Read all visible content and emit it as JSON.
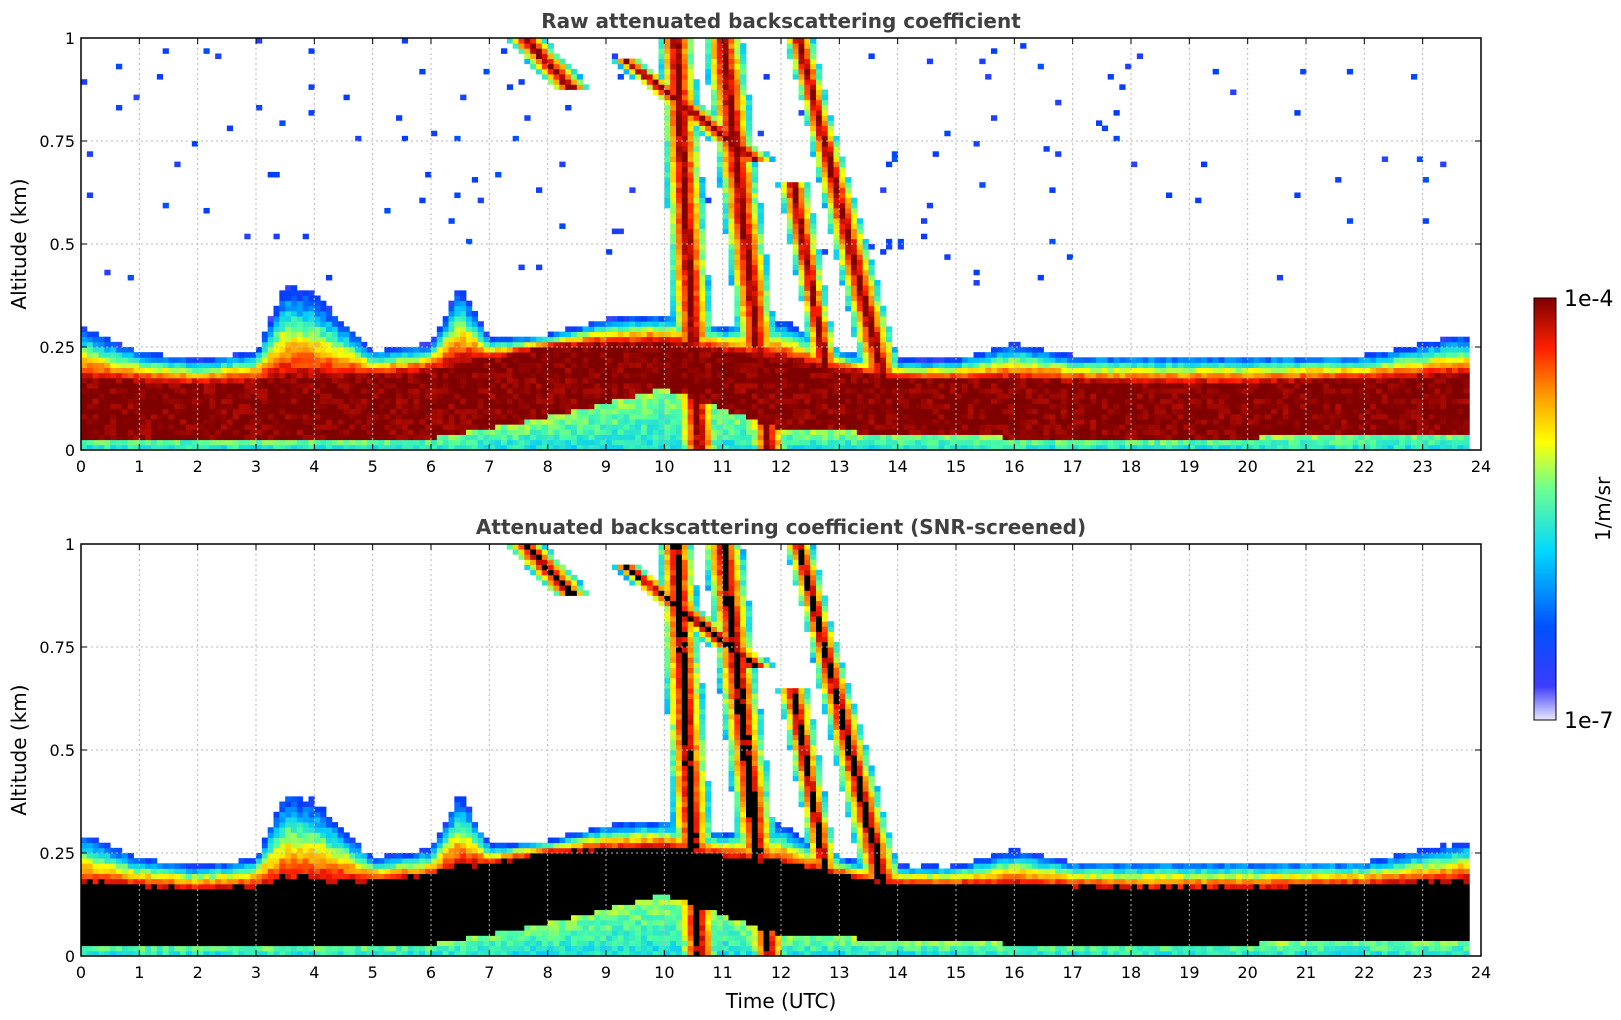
{
  "chart_data": [
    {
      "type": "heatmap",
      "title": "Raw attenuated backscattering coefficient",
      "xlabel": "",
      "ylabel": "Altitude (km)",
      "xlim": [
        0,
        24
      ],
      "ylim": [
        0,
        1
      ],
      "x_ticks": [
        "0",
        "1",
        "2",
        "3",
        "4",
        "5",
        "6",
        "7",
        "8",
        "9",
        "10",
        "11",
        "12",
        "13",
        "14",
        "15",
        "16",
        "17",
        "18",
        "19",
        "20",
        "21",
        "22",
        "23",
        "24"
      ],
      "y_ticks": [
        "0",
        "0.25",
        "0.5",
        "0.75",
        "1"
      ],
      "grid": true,
      "colorscale": "jet",
      "screened": false,
      "features": {
        "boundary_layer_top_km": [
          [
            0.0,
            0.3
          ],
          [
            1.0,
            0.24
          ],
          [
            2.0,
            0.22
          ],
          [
            3.0,
            0.24
          ],
          [
            3.5,
            0.4
          ],
          [
            4.0,
            0.38
          ],
          [
            5.0,
            0.24
          ],
          [
            6.0,
            0.26
          ],
          [
            6.5,
            0.4
          ],
          [
            7.0,
            0.27
          ],
          [
            8.0,
            0.28
          ],
          [
            9.0,
            0.32
          ],
          [
            10.0,
            0.33
          ],
          [
            11.0,
            0.3
          ],
          [
            12.0,
            0.32
          ],
          [
            13.0,
            0.24
          ],
          [
            14.0,
            0.22
          ],
          [
            15.0,
            0.22
          ],
          [
            16.0,
            0.26
          ],
          [
            17.0,
            0.23
          ],
          [
            18.0,
            0.23
          ],
          [
            19.0,
            0.23
          ],
          [
            20.0,
            0.23
          ],
          [
            21.0,
            0.23
          ],
          [
            22.0,
            0.23
          ],
          [
            23.0,
            0.26
          ],
          [
            23.8,
            0.28
          ]
        ],
        "dense_layer_km": [
          [
            0.0,
            0.03,
            0.17
          ],
          [
            2.0,
            0.03,
            0.16
          ],
          [
            4.0,
            0.03,
            0.17
          ],
          [
            6.0,
            0.03,
            0.19
          ],
          [
            8.0,
            0.08,
            0.25
          ],
          [
            10.0,
            0.15,
            0.26
          ],
          [
            12.0,
            0.05,
            0.22
          ],
          [
            14.0,
            0.04,
            0.17
          ],
          [
            16.0,
            0.03,
            0.17
          ],
          [
            18.0,
            0.03,
            0.16
          ],
          [
            20.0,
            0.03,
            0.16
          ],
          [
            22.0,
            0.04,
            0.17
          ],
          [
            23.8,
            0.04,
            0.18
          ]
        ],
        "descending_cloud_bands": [
          {
            "x_top": 7.6,
            "x_bottom": 8.4,
            "y_top": 1.0,
            "y_bottom": 0.88
          },
          {
            "x_top": 9.3,
            "x_bottom": 11.6,
            "y_top": 0.95,
            "y_bottom": 0.7
          },
          {
            "x_top": 10.2,
            "x_bottom": 10.6,
            "y_top": 1.0,
            "y_bottom": 0.0
          },
          {
            "x_top": 11.0,
            "x_bottom": 11.8,
            "y_top": 1.0,
            "y_bottom": 0.0
          },
          {
            "x_top": 12.2,
            "x_bottom": 12.9,
            "y_top": 0.65,
            "y_bottom": 0.1
          },
          {
            "x_top": 12.3,
            "x_bottom": 13.8,
            "y_top": 1.0,
            "y_bottom": 0.15
          }
        ]
      }
    },
    {
      "type": "heatmap",
      "title": "Attenuated backscattering coefficient (SNR-screened)",
      "xlabel": "Time (UTC)",
      "ylabel": "Altitude (km)",
      "xlim": [
        0,
        24
      ],
      "ylim": [
        0,
        1
      ],
      "x_ticks": [
        "0",
        "1",
        "2",
        "3",
        "4",
        "5",
        "6",
        "7",
        "8",
        "9",
        "10",
        "11",
        "12",
        "13",
        "14",
        "15",
        "16",
        "17",
        "18",
        "19",
        "20",
        "21",
        "22",
        "23",
        "24"
      ],
      "y_ticks": [
        "0",
        "0.25",
        "0.5",
        "0.75",
        "1"
      ],
      "grid": true,
      "colorscale": "jet",
      "screened": true,
      "saturated_color": "#000000"
    }
  ],
  "colorbar": {
    "label": "1/m/sr",
    "max_label": "1e-4",
    "min_label": "1e-7",
    "scale": "log",
    "stops": [
      "#e8e8ff",
      "#0000ff",
      "#00ffff",
      "#ffff00",
      "#ff8000",
      "#ff0000",
      "#800000"
    ]
  }
}
